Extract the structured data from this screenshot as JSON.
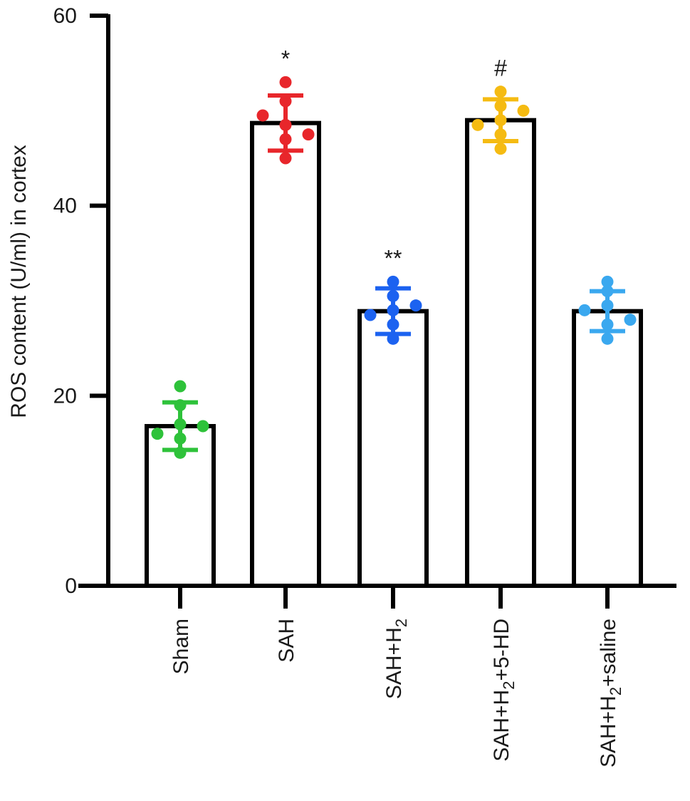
{
  "chart_data": {
    "type": "bar",
    "ylabel": "ROS content (U/ml) in cortex",
    "ylim": [
      0,
      60
    ],
    "yticks": [
      0,
      20,
      40,
      60
    ],
    "grid": false,
    "categories": [
      {
        "id": "sham",
        "base": "Sham",
        "sub": "",
        "rest": ""
      },
      {
        "id": "sah",
        "base": "SAH",
        "sub": "",
        "rest": ""
      },
      {
        "id": "sah-h2",
        "base": "SAH+H",
        "sub": "2",
        "rest": ""
      },
      {
        "id": "sah-h2-5hd",
        "base": "SAH+H",
        "sub": "2",
        "rest": "+5-HD"
      },
      {
        "id": "sah-h2-saline",
        "base": "SAH+H",
        "sub": "2",
        "rest": "+saline"
      }
    ],
    "values": [
      16.8,
      48.7,
      28.9,
      49.0,
      28.9
    ],
    "error": [
      2.5,
      2.9,
      2.4,
      2.2,
      2.1
    ],
    "points": [
      [
        21,
        19,
        17,
        15.5,
        14,
        16,
        16.8
      ],
      [
        53,
        51,
        48.5,
        47,
        45,
        49.5,
        47.5
      ],
      [
        32,
        30.5,
        29,
        27.5,
        26,
        28.5,
        29.5
      ],
      [
        52,
        50.5,
        49,
        47.5,
        46,
        48.5,
        50
      ],
      [
        32,
        31,
        29.5,
        27.5,
        26,
        29,
        28
      ]
    ],
    "point_colors": [
      "#2ec23a",
      "#e8262b",
      "#1c62f0",
      "#f5bb12",
      "#3aa8ef"
    ],
    "significance": [
      "",
      "*",
      "**",
      "#",
      ""
    ]
  }
}
